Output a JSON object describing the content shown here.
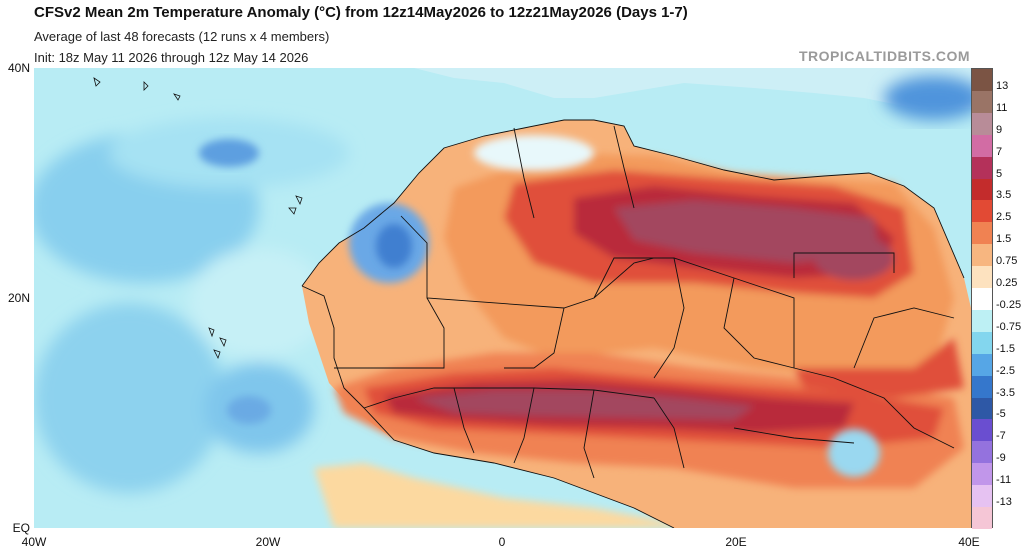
{
  "header": {
    "title": "CFSv2 Mean 2m Temperature Anomaly (°C) from 12z14May2026 to 12z21May2026 (Days 1-7)",
    "subtitle_1": "Average of last 48 forecasts (12 runs x 4 members)",
    "subtitle_2": "Init: 18z May 11 2026 through 12z May 14 2026",
    "credit": "TROPICALTIDBITS.COM"
  },
  "map": {
    "lat_labels": [
      "40N",
      "20N",
      "EQ"
    ],
    "lon_labels": [
      "40W",
      "20W",
      "0",
      "20E",
      "40E"
    ],
    "colors": {
      "ocean_base": "#b8ecf4",
      "ocean_deep": "#7fc6ec",
      "cold_core": "#4f94dc",
      "neutral": "#ffffff",
      "warm_light": "#fcd9a0",
      "warm_mid": "#f39a5c",
      "warm_strong": "#e0503a",
      "hot": "#b92a3a",
      "hottest": "#a3465e",
      "border": "#111111"
    }
  },
  "colorbar": {
    "labels": [
      "13",
      "11",
      "9",
      "7",
      "5",
      "3.5",
      "2.5",
      "1.5",
      "0.75",
      "0.25",
      "-0.25",
      "-0.75",
      "-1.5",
      "-2.5",
      "-3.5",
      "-5",
      "-7",
      "-9",
      "-11",
      "-13"
    ],
    "colors": [
      "#7b5444",
      "#9a7466",
      "#b88c98",
      "#d26ca4",
      "#b4315a",
      "#c32c2c",
      "#e24a34",
      "#f08252",
      "#f7b680",
      "#fde2bf",
      "#ffffff",
      "#bdf0f4",
      "#83d6ee",
      "#56a6e6",
      "#3577cc",
      "#2e58a6",
      "#6a4ed0",
      "#9472de",
      "#c196ea",
      "#e6c2f2",
      "#f5c6d6"
    ]
  }
}
